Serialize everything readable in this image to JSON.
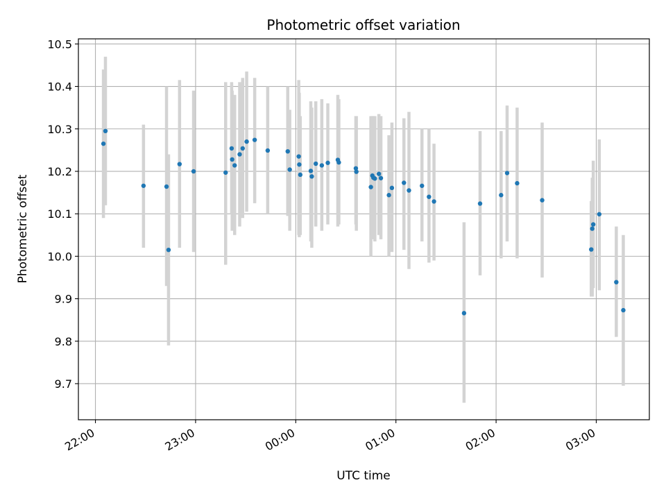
{
  "chart_data": {
    "type": "scatter",
    "title": "Photometric offset variation",
    "xlabel": "UTC time",
    "ylabel": "Photometric offset",
    "x_axis": {
      "kind": "time",
      "unit": "UTC time of night, hours after midnight (negative = before 00:00)",
      "range": [
        -2.17,
        3.53
      ],
      "ticks": [
        {
          "value": -2,
          "label": "22:00"
        },
        {
          "value": -1,
          "label": "23:00"
        },
        {
          "value": 0,
          "label": "00:00"
        },
        {
          "value": 1,
          "label": "01:00"
        },
        {
          "value": 2,
          "label": "02:00"
        },
        {
          "value": 3,
          "label": "03:00"
        }
      ],
      "tick_label_rotation": 30
    },
    "y_axis": {
      "range": [
        9.615,
        10.512
      ],
      "ticks": [
        {
          "value": 9.7,
          "label": "9.7"
        },
        {
          "value": 9.8,
          "label": "9.8"
        },
        {
          "value": 9.9,
          "label": "9.9"
        },
        {
          "value": 10.0,
          "label": "10.0"
        },
        {
          "value": 10.1,
          "label": "10.1"
        },
        {
          "value": 10.2,
          "label": "10.2"
        },
        {
          "value": 10.3,
          "label": "10.3"
        },
        {
          "value": 10.4,
          "label": "10.4"
        },
        {
          "value": 10.5,
          "label": "10.5"
        }
      ]
    },
    "grid": true,
    "legend": "none",
    "colors": {
      "points": "#1f77b4",
      "error_bars": "#d3d3d3",
      "grid": "#b0b0b0"
    },
    "points": [
      {
        "x": -1.92,
        "y": 10.265,
        "lo": 10.09,
        "hi": 10.44
      },
      {
        "x": -1.9,
        "y": 10.295,
        "lo": 10.12,
        "hi": 10.47
      },
      {
        "x": -1.52,
        "y": 10.166,
        "lo": 10.02,
        "hi": 10.31
      },
      {
        "x": -1.29,
        "y": 10.164,
        "lo": 9.93,
        "hi": 10.4
      },
      {
        "x": -1.27,
        "y": 10.015,
        "lo": 9.79,
        "hi": 10.24
      },
      {
        "x": -1.16,
        "y": 10.217,
        "lo": 10.02,
        "hi": 10.415
      },
      {
        "x": -1.02,
        "y": 10.2,
        "lo": 10.01,
        "hi": 10.39
      },
      {
        "x": -0.7,
        "y": 10.197,
        "lo": 9.98,
        "hi": 10.41
      },
      {
        "x": -0.64,
        "y": 10.254,
        "lo": 10.1,
        "hi": 10.41
      },
      {
        "x": -0.635,
        "y": 10.228,
        "lo": 10.06,
        "hi": 10.39
      },
      {
        "x": -0.61,
        "y": 10.214,
        "lo": 10.05,
        "hi": 10.38
      },
      {
        "x": -0.56,
        "y": 10.24,
        "lo": 10.07,
        "hi": 10.41
      },
      {
        "x": -0.53,
        "y": 10.254,
        "lo": 10.09,
        "hi": 10.42
      },
      {
        "x": -0.49,
        "y": 10.27,
        "lo": 10.105,
        "hi": 10.435
      },
      {
        "x": -0.41,
        "y": 10.274,
        "lo": 10.125,
        "hi": 10.42
      },
      {
        "x": -0.28,
        "y": 10.249,
        "lo": 10.1,
        "hi": 10.4
      },
      {
        "x": -0.08,
        "y": 10.247,
        "lo": 10.095,
        "hi": 10.4
      },
      {
        "x": -0.06,
        "y": 10.204,
        "lo": 10.06,
        "hi": 10.345
      },
      {
        "x": 0.03,
        "y": 10.235,
        "lo": 10.05,
        "hi": 10.415
      },
      {
        "x": 0.035,
        "y": 10.216,
        "lo": 10.045,
        "hi": 10.385
      },
      {
        "x": 0.045,
        "y": 10.192,
        "lo": 10.05,
        "hi": 10.33
      },
      {
        "x": 0.15,
        "y": 10.201,
        "lo": 10.035,
        "hi": 10.365
      },
      {
        "x": 0.16,
        "y": 10.188,
        "lo": 10.02,
        "hi": 10.35
      },
      {
        "x": 0.2,
        "y": 10.218,
        "lo": 10.07,
        "hi": 10.365
      },
      {
        "x": 0.26,
        "y": 10.214,
        "lo": 10.06,
        "hi": 10.37
      },
      {
        "x": 0.32,
        "y": 10.22,
        "lo": 10.075,
        "hi": 10.36
      },
      {
        "x": 0.42,
        "y": 10.227,
        "lo": 10.07,
        "hi": 10.38
      },
      {
        "x": 0.43,
        "y": 10.221,
        "lo": 10.075,
        "hi": 10.37
      },
      {
        "x": 0.6,
        "y": 10.207,
        "lo": 10.075,
        "hi": 10.33
      },
      {
        "x": 0.605,
        "y": 10.199,
        "lo": 10.06,
        "hi": 10.33
      },
      {
        "x": 0.75,
        "y": 10.163,
        "lo": 10.0,
        "hi": 10.33
      },
      {
        "x": 0.765,
        "y": 10.19,
        "lo": 10.05,
        "hi": 10.33
      },
      {
        "x": 0.775,
        "y": 10.185,
        "lo": 10.04,
        "hi": 10.33
      },
      {
        "x": 0.79,
        "y": 10.183,
        "lo": 10.035,
        "hi": 10.33
      },
      {
        "x": 0.83,
        "y": 10.194,
        "lo": 10.05,
        "hi": 10.335
      },
      {
        "x": 0.85,
        "y": 10.184,
        "lo": 10.04,
        "hi": 10.33
      },
      {
        "x": 0.93,
        "y": 10.144,
        "lo": 10.0,
        "hi": 10.285
      },
      {
        "x": 0.96,
        "y": 10.161,
        "lo": 10.01,
        "hi": 10.315
      },
      {
        "x": 1.08,
        "y": 10.173,
        "lo": 10.015,
        "hi": 10.325
      },
      {
        "x": 1.13,
        "y": 10.155,
        "lo": 9.97,
        "hi": 10.34
      },
      {
        "x": 1.26,
        "y": 10.166,
        "lo": 10.035,
        "hi": 10.3
      },
      {
        "x": 1.33,
        "y": 10.14,
        "lo": 9.985,
        "hi": 10.3
      },
      {
        "x": 1.38,
        "y": 10.129,
        "lo": 9.99,
        "hi": 10.265
      },
      {
        "x": 1.68,
        "y": 9.866,
        "lo": 9.655,
        "hi": 10.08
      },
      {
        "x": 1.84,
        "y": 10.124,
        "lo": 9.955,
        "hi": 10.295
      },
      {
        "x": 2.05,
        "y": 10.144,
        "lo": 9.995,
        "hi": 10.295
      },
      {
        "x": 2.11,
        "y": 10.196,
        "lo": 10.035,
        "hi": 10.355
      },
      {
        "x": 2.21,
        "y": 10.172,
        "lo": 9.995,
        "hi": 10.35
      },
      {
        "x": 2.46,
        "y": 10.132,
        "lo": 9.95,
        "hi": 10.315
      },
      {
        "x": 2.95,
        "y": 10.016,
        "lo": 9.905,
        "hi": 10.13
      },
      {
        "x": 2.96,
        "y": 10.065,
        "lo": 9.905,
        "hi": 10.185
      },
      {
        "x": 2.97,
        "y": 10.075,
        "lo": 9.925,
        "hi": 10.225
      },
      {
        "x": 3.03,
        "y": 10.099,
        "lo": 9.92,
        "hi": 10.275
      },
      {
        "x": 3.2,
        "y": 9.939,
        "lo": 9.81,
        "hi": 10.07
      },
      {
        "x": 3.27,
        "y": 9.873,
        "lo": 9.695,
        "hi": 10.05
      }
    ]
  }
}
